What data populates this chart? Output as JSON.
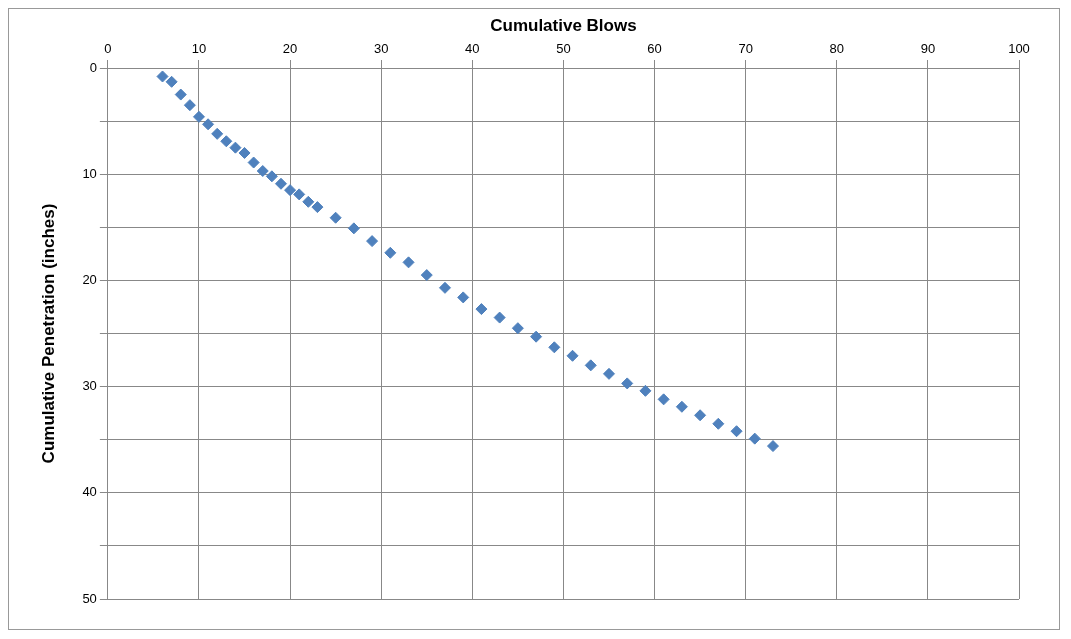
{
  "chart_data": {
    "type": "scatter",
    "xlabel": "Cumulative Blows",
    "ylabel": "Cumulative Penetration (inches)",
    "xlim": [
      0,
      100
    ],
    "xticks": [
      0,
      10,
      20,
      30,
      40,
      50,
      60,
      70,
      80,
      90,
      100
    ],
    "ylim": [
      50,
      0
    ],
    "yticks": [
      0,
      {
        "value": 5,
        "label": null
      },
      10,
      {
        "value": 15,
        "label": null
      },
      20,
      {
        "value": 25,
        "label": null
      },
      30,
      {
        "value": 35,
        "label": null
      },
      40,
      {
        "value": 45,
        "label": null
      },
      50
    ],
    "grid": true,
    "marker": "diamond",
    "legend": false,
    "series": [
      {
        "color": "#4f81bd",
        "x": [
          6,
          7,
          8,
          9,
          10,
          11,
          12,
          13,
          14,
          15,
          16,
          17,
          18,
          19,
          20,
          21,
          22,
          23,
          25,
          27,
          29,
          31,
          33,
          35,
          37,
          39,
          41,
          43,
          45,
          47,
          49,
          51,
          53,
          55,
          57,
          59,
          61,
          63,
          65,
          67,
          69,
          71,
          73
        ],
        "values": [
          0.8,
          1.3,
          2.5,
          3.5,
          4.6,
          5.3,
          6.2,
          6.9,
          7.5,
          8.0,
          8.9,
          9.7,
          10.2,
          10.9,
          11.5,
          11.9,
          12.6,
          13.1,
          14.1,
          15.1,
          16.3,
          17.4,
          18.3,
          19.5,
          20.7,
          21.6,
          22.7,
          23.5,
          24.5,
          25.3,
          26.3,
          27.1,
          28.0,
          28.8,
          29.7,
          30.4,
          31.2,
          31.9,
          32.7,
          33.5,
          34.2,
          34.9,
          35.6
        ]
      }
    ]
  }
}
